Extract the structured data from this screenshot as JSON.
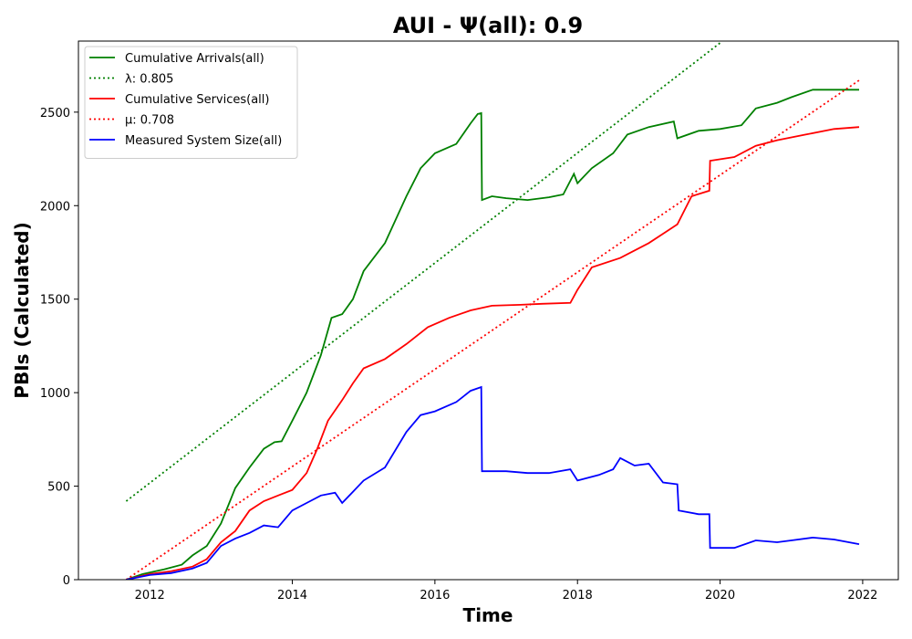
{
  "chart_data": {
    "type": "line",
    "title": "AUI -  Ψ(all): 0.9",
    "xlabel": "Time",
    "ylabel": "PBIs (Calculated)",
    "xlim": [
      2011.0,
      2022.5
    ],
    "ylim": [
      0,
      2880
    ],
    "xticks": [
      2012,
      2014,
      2016,
      2018,
      2020,
      2022
    ],
    "yticks": [
      0,
      500,
      1000,
      1500,
      2000,
      2500
    ],
    "grid": false,
    "legend_position": "top-left",
    "series": [
      {
        "name": "Cumulative Arrivals(all)",
        "color": "#008000",
        "style": "solid",
        "points": [
          [
            2011.67,
            0
          ],
          [
            2011.9,
            30
          ],
          [
            2012.2,
            55
          ],
          [
            2012.45,
            80
          ],
          [
            2012.6,
            130
          ],
          [
            2012.8,
            180
          ],
          [
            2013.0,
            300
          ],
          [
            2013.2,
            490
          ],
          [
            2013.4,
            600
          ],
          [
            2013.6,
            700
          ],
          [
            2013.75,
            735
          ],
          [
            2013.85,
            740
          ],
          [
            2014.0,
            850
          ],
          [
            2014.2,
            1000
          ],
          [
            2014.4,
            1200
          ],
          [
            2014.55,
            1400
          ],
          [
            2014.7,
            1420
          ],
          [
            2014.85,
            1500
          ],
          [
            2015.0,
            1650
          ],
          [
            2015.3,
            1800
          ],
          [
            2015.6,
            2050
          ],
          [
            2015.8,
            2200
          ],
          [
            2016.0,
            2280
          ],
          [
            2016.3,
            2330
          ],
          [
            2016.5,
            2440
          ],
          [
            2016.6,
            2490
          ],
          [
            2016.65,
            2495
          ],
          [
            2016.66,
            2030
          ],
          [
            2016.8,
            2050
          ],
          [
            2017.0,
            2040
          ],
          [
            2017.3,
            2030
          ],
          [
            2017.6,
            2045
          ],
          [
            2017.8,
            2060
          ],
          [
            2017.95,
            2170
          ],
          [
            2018.0,
            2120
          ],
          [
            2018.2,
            2200
          ],
          [
            2018.5,
            2280
          ],
          [
            2018.7,
            2380
          ],
          [
            2019.0,
            2420
          ],
          [
            2019.35,
            2450
          ],
          [
            2019.4,
            2360
          ],
          [
            2019.7,
            2400
          ],
          [
            2020.0,
            2410
          ],
          [
            2020.3,
            2430
          ],
          [
            2020.5,
            2520
          ],
          [
            2020.8,
            2550
          ],
          [
            2021.0,
            2580
          ],
          [
            2021.3,
            2620
          ],
          [
            2021.6,
            2620
          ],
          [
            2021.95,
            2620
          ]
        ]
      },
      {
        "name": "λ: 0.805",
        "color": "#008000",
        "style": "dotted",
        "points": [
          [
            2011.67,
            420
          ],
          [
            2020.0,
            2870
          ]
        ]
      },
      {
        "name": "Cumulative Services(all)",
        "color": "#ff0000",
        "style": "solid",
        "points": [
          [
            2011.67,
            0
          ],
          [
            2012.0,
            30
          ],
          [
            2012.3,
            45
          ],
          [
            2012.6,
            70
          ],
          [
            2012.8,
            110
          ],
          [
            2013.0,
            200
          ],
          [
            2013.2,
            260
          ],
          [
            2013.4,
            370
          ],
          [
            2013.6,
            420
          ],
          [
            2013.8,
            450
          ],
          [
            2014.0,
            480
          ],
          [
            2014.2,
            570
          ],
          [
            2014.35,
            700
          ],
          [
            2014.5,
            850
          ],
          [
            2014.7,
            960
          ],
          [
            2014.85,
            1050
          ],
          [
            2015.0,
            1130
          ],
          [
            2015.3,
            1180
          ],
          [
            2015.6,
            1260
          ],
          [
            2015.9,
            1350
          ],
          [
            2016.2,
            1400
          ],
          [
            2016.5,
            1440
          ],
          [
            2016.8,
            1465
          ],
          [
            2017.2,
            1470
          ],
          [
            2017.5,
            1475
          ],
          [
            2017.9,
            1480
          ],
          [
            2018.0,
            1550
          ],
          [
            2018.2,
            1670
          ],
          [
            2018.6,
            1720
          ],
          [
            2019.0,
            1800
          ],
          [
            2019.4,
            1900
          ],
          [
            2019.6,
            2050
          ],
          [
            2019.85,
            2080
          ],
          [
            2019.86,
            2240
          ],
          [
            2020.2,
            2260
          ],
          [
            2020.5,
            2320
          ],
          [
            2020.8,
            2350
          ],
          [
            2021.2,
            2380
          ],
          [
            2021.6,
            2410
          ],
          [
            2021.95,
            2420
          ]
        ]
      },
      {
        "name": "μ: 0.708",
        "color": "#ff0000",
        "style": "dotted",
        "points": [
          [
            2011.67,
            0
          ],
          [
            2021.95,
            2670
          ]
        ]
      },
      {
        "name": "Measured System Size(all)",
        "color": "#0000ff",
        "style": "solid",
        "points": [
          [
            2011.67,
            0
          ],
          [
            2012.0,
            25
          ],
          [
            2012.3,
            35
          ],
          [
            2012.6,
            60
          ],
          [
            2012.8,
            90
          ],
          [
            2013.0,
            180
          ],
          [
            2013.2,
            220
          ],
          [
            2013.4,
            250
          ],
          [
            2013.6,
            290
          ],
          [
            2013.8,
            280
          ],
          [
            2014.0,
            370
          ],
          [
            2014.2,
            410
          ],
          [
            2014.4,
            450
          ],
          [
            2014.6,
            465
          ],
          [
            2014.7,
            410
          ],
          [
            2014.85,
            470
          ],
          [
            2015.0,
            530
          ],
          [
            2015.3,
            600
          ],
          [
            2015.6,
            790
          ],
          [
            2015.8,
            880
          ],
          [
            2016.0,
            900
          ],
          [
            2016.3,
            950
          ],
          [
            2016.5,
            1010
          ],
          [
            2016.65,
            1030
          ],
          [
            2016.66,
            580
          ],
          [
            2017.0,
            580
          ],
          [
            2017.3,
            570
          ],
          [
            2017.6,
            570
          ],
          [
            2017.9,
            590
          ],
          [
            2018.0,
            530
          ],
          [
            2018.3,
            560
          ],
          [
            2018.5,
            590
          ],
          [
            2018.6,
            650
          ],
          [
            2018.8,
            610
          ],
          [
            2019.0,
            620
          ],
          [
            2019.2,
            520
          ],
          [
            2019.4,
            510
          ],
          [
            2019.42,
            370
          ],
          [
            2019.7,
            350
          ],
          [
            2019.85,
            350
          ],
          [
            2019.86,
            170
          ],
          [
            2020.2,
            170
          ],
          [
            2020.5,
            210
          ],
          [
            2020.8,
            200
          ],
          [
            2021.0,
            210
          ],
          [
            2021.3,
            225
          ],
          [
            2021.6,
            215
          ],
          [
            2021.95,
            190
          ]
        ]
      }
    ]
  }
}
